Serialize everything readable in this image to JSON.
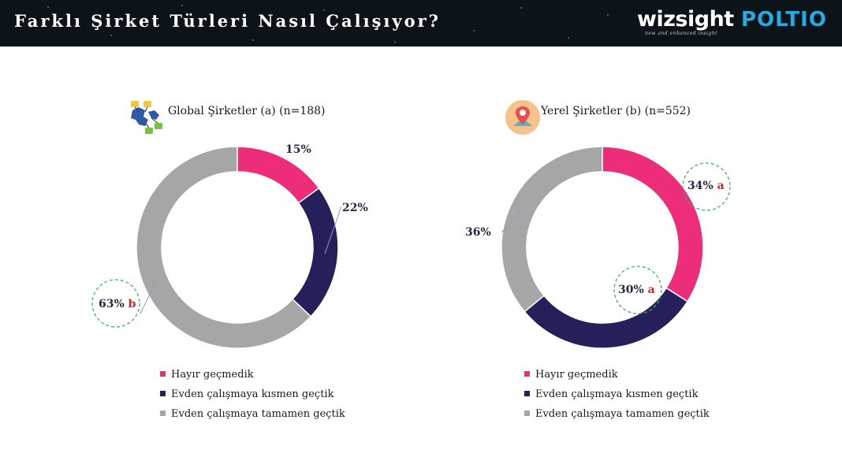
{
  "header": {
    "title": "Farklı Şirket Türleri Nasıl Çalışıyor?",
    "logo_primary": "wizsight",
    "logo_primary_tagline": "new and enhanced insight",
    "logo_secondary": "POLTIO"
  },
  "colors": {
    "series": [
      "#ee2d7a",
      "#25205a",
      "#a6a6a6"
    ],
    "header_bg": "#0d1419",
    "significance": "#e02020"
  },
  "chart_data": [
    {
      "type": "donut",
      "title": "Global Şirketler (a) (n=188)",
      "icon": "global-network-icon",
      "categories": [
        "Hayır geçmedik",
        "Evden çalışmaya kısmen geçtik",
        "Evden çalışmaya tamamen geçtik"
      ],
      "values": [
        15,
        22,
        63
      ],
      "value_labels": [
        "15%",
        "22%",
        "63%"
      ],
      "significance": [
        "",
        "",
        "b"
      ],
      "legend_position": "bottom"
    },
    {
      "type": "donut",
      "title": "Yerel Şirketler (b) (n=552)",
      "icon": "location-pin-icon",
      "categories": [
        "Hayır geçmedik",
        "Evden çalışmaya kısmen geçtik",
        "Evden çalışmaya tamamen geçtik"
      ],
      "values": [
        34,
        30,
        36
      ],
      "value_labels": [
        "34%",
        "30%",
        "36%"
      ],
      "significance": [
        "a",
        "a",
        ""
      ],
      "legend_position": "bottom"
    }
  ]
}
